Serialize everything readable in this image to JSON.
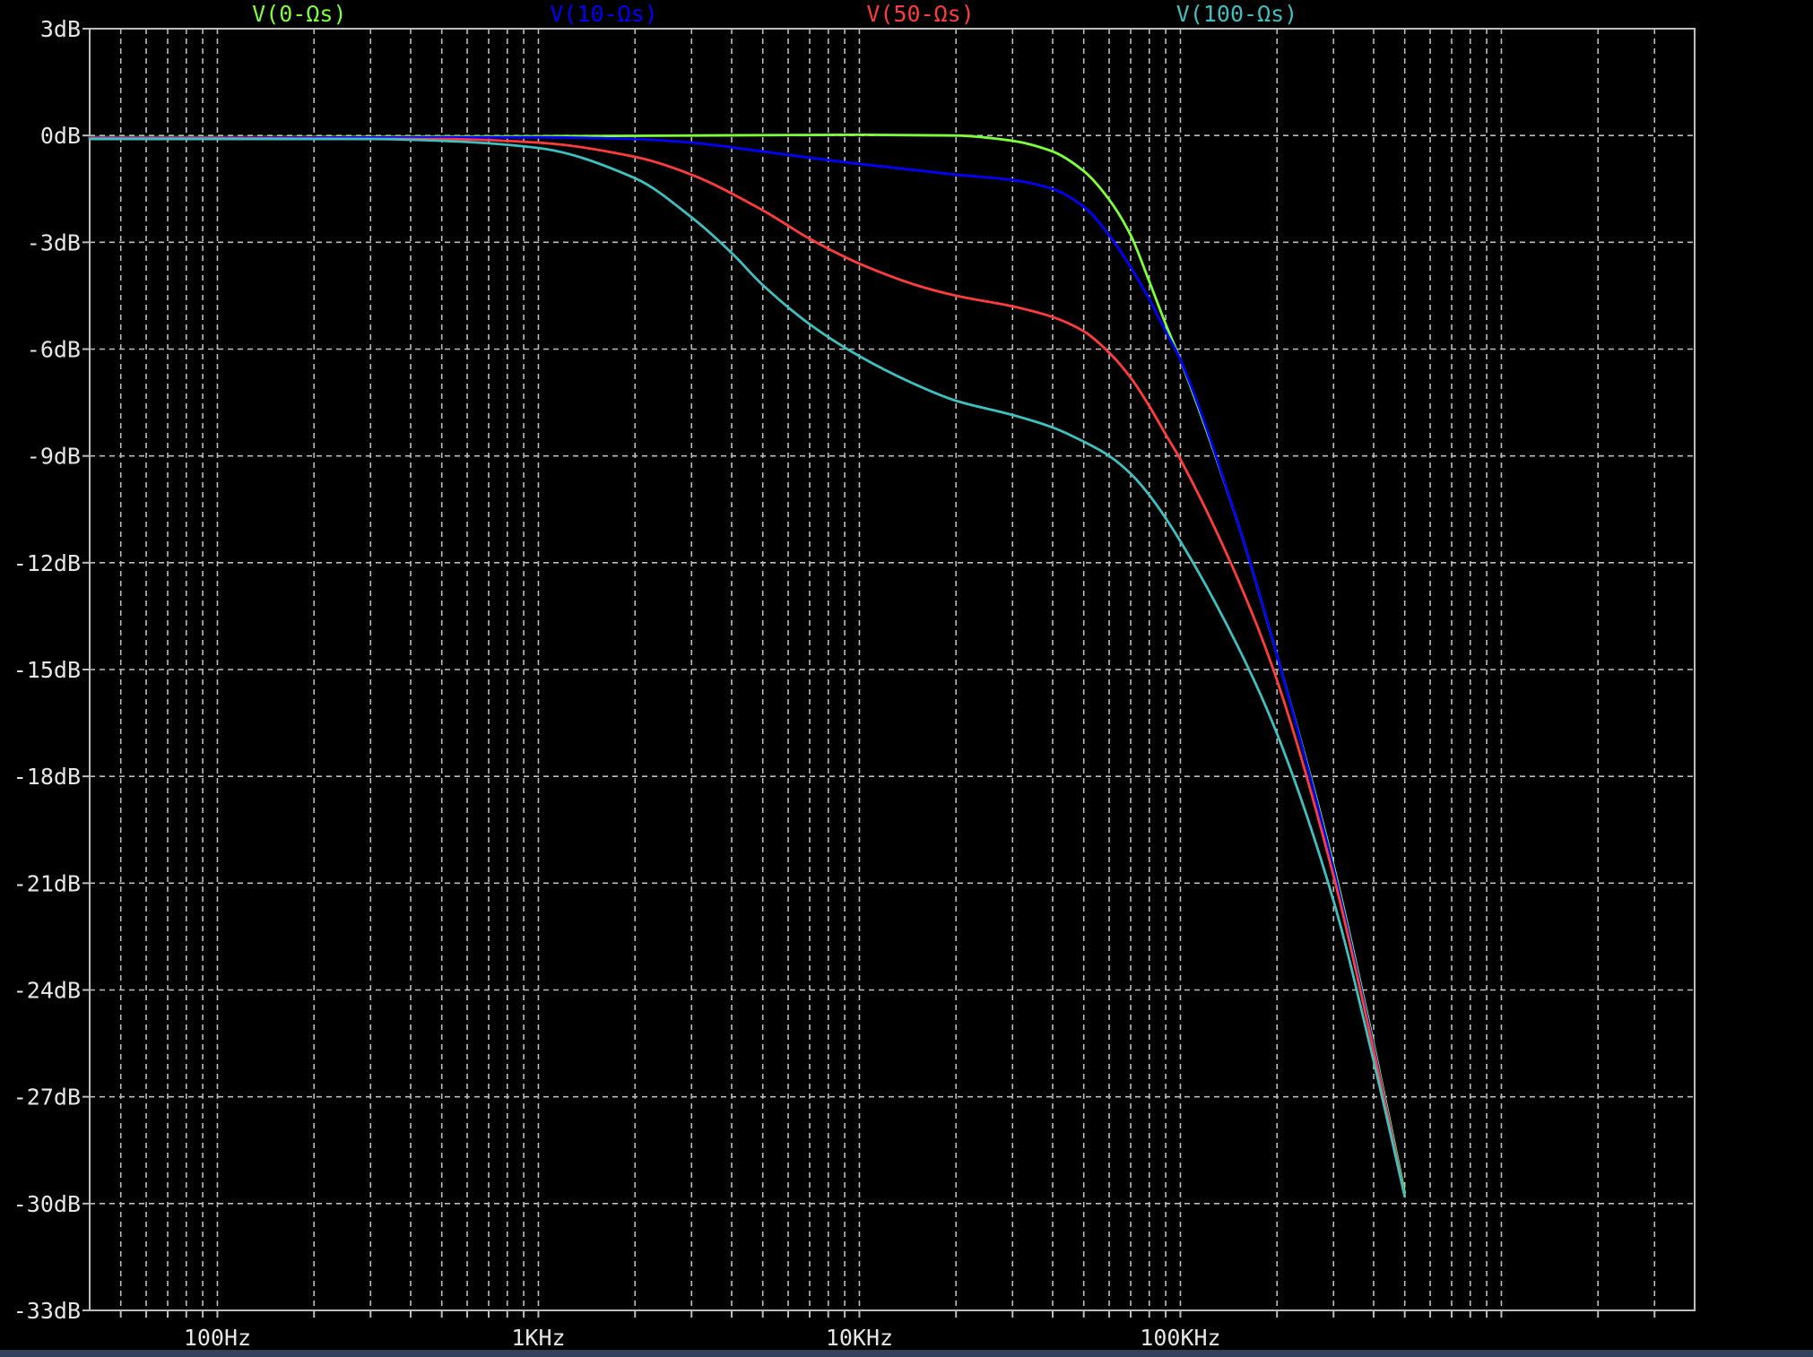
{
  "chart_data": {
    "type": "line",
    "title": "",
    "xlabel": "",
    "ylabel": "",
    "x_scale": "log",
    "xlim": [
      40,
      4000000
    ],
    "ylim": [
      -33,
      3
    ],
    "grid": true,
    "legend_position": "top",
    "x_ticks": [
      {
        "value": 100,
        "label": "100Hz"
      },
      {
        "value": 1000,
        "label": "1KHz"
      },
      {
        "value": 10000,
        "label": "10KHz"
      },
      {
        "value": 100000,
        "label": "100KHz"
      }
    ],
    "y_ticks": [
      {
        "value": 3,
        "label": "3dB"
      },
      {
        "value": 0,
        "label": "0dB"
      },
      {
        "value": -3,
        "label": "-3dB"
      },
      {
        "value": -6,
        "label": "-6dB"
      },
      {
        "value": -9,
        "label": "-9dB"
      },
      {
        "value": -12,
        "label": "-12dB"
      },
      {
        "value": -15,
        "label": "-15dB"
      },
      {
        "value": -18,
        "label": "-18dB"
      },
      {
        "value": -21,
        "label": "-21dB"
      },
      {
        "value": -24,
        "label": "-24dB"
      },
      {
        "value": -27,
        "label": "-27dB"
      },
      {
        "value": -30,
        "label": "-30dB"
      },
      {
        "value": -33,
        "label": "-33dB"
      }
    ],
    "series": [
      {
        "name": "V(0-Ωs)",
        "color": "#7dff3c",
        "x": [
          40,
          100,
          500,
          1000,
          3000,
          10000,
          20000,
          30000,
          40000,
          50000,
          60000,
          70000,
          80000,
          90000,
          100000,
          150000,
          200000,
          300000,
          400000,
          500000
        ],
        "y": [
          -0.05,
          -0.05,
          -0.03,
          -0.02,
          0.0,
          0.02,
          0.0,
          -0.15,
          -0.45,
          -1.0,
          -1.8,
          -2.8,
          -4.1,
          -5.3,
          -6.3,
          -10.8,
          -14.6,
          -20.5,
          -25.5,
          -29.7
        ]
      },
      {
        "name": "V(10-Ωs)",
        "color": "#0000ff",
        "x": [
          40,
          100,
          500,
          1000,
          2000,
          3000,
          5000,
          10000,
          20000,
          30000,
          40000,
          50000,
          60000,
          70000,
          80000,
          90000,
          100000,
          150000,
          200000,
          300000,
          400000,
          500000
        ],
        "y": [
          -0.06,
          -0.06,
          -0.05,
          -0.05,
          -0.1,
          -0.2,
          -0.45,
          -0.8,
          -1.1,
          -1.25,
          -1.5,
          -2.0,
          -2.8,
          -3.7,
          -4.6,
          -5.5,
          -6.3,
          -10.8,
          -14.6,
          -20.6,
          -25.6,
          -29.8
        ]
      },
      {
        "name": "V(50-Ωs)",
        "color": "#ff3c3c",
        "x": [
          40,
          100,
          500,
          1000,
          2000,
          3000,
          5000,
          7000,
          10000,
          15000,
          20000,
          30000,
          40000,
          50000,
          60000,
          70000,
          80000,
          90000,
          100000,
          150000,
          200000,
          300000,
          400000,
          500000
        ],
        "y": [
          -0.08,
          -0.08,
          -0.1,
          -0.2,
          -0.6,
          -1.1,
          -2.1,
          -2.9,
          -3.6,
          -4.2,
          -4.5,
          -4.8,
          -5.1,
          -5.5,
          -6.1,
          -6.8,
          -7.6,
          -8.4,
          -9.1,
          -12.4,
          -15.3,
          -20.8,
          -25.7,
          -29.8
        ]
      },
      {
        "name": "V(100-Ωs)",
        "color": "#3fbfbf",
        "x": [
          40,
          100,
          300,
          500,
          1000,
          2000,
          3000,
          4000,
          5000,
          7000,
          10000,
          15000,
          20000,
          30000,
          40000,
          50000,
          60000,
          70000,
          80000,
          100000,
          150000,
          200000,
          300000,
          400000,
          500000
        ],
        "y": [
          -0.1,
          -0.1,
          -0.1,
          -0.15,
          -0.35,
          -1.2,
          -2.3,
          -3.3,
          -4.2,
          -5.3,
          -6.2,
          -7.0,
          -7.45,
          -7.85,
          -8.2,
          -8.6,
          -9.0,
          -9.5,
          -10.1,
          -11.4,
          -14.3,
          -16.8,
          -21.5,
          -26.0,
          -29.8
        ]
      }
    ]
  }
}
